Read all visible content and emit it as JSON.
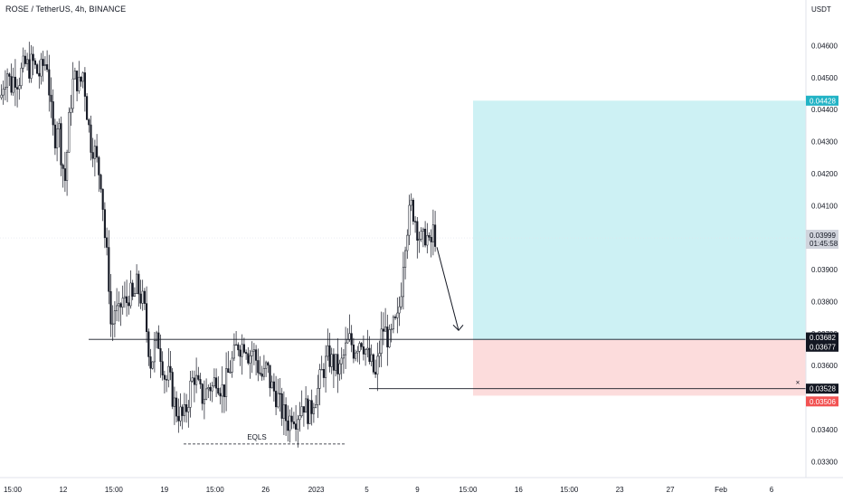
{
  "chart_title": "ROSE / TetherUS, 4h, BINANCE",
  "colors": {
    "candle": "#131722",
    "profit_zone": "#cdf1f4",
    "stop_zone": "#fcdcdc",
    "target_badge": "#22b3c5",
    "stop_badge": "#f25353",
    "dark_badge": "#131722",
    "current_badge": "#d1d4dc"
  },
  "chart_data": {
    "type": "candlestick",
    "symbol": "ROSE / TetherUS",
    "interval": "4h",
    "exchange": "BINANCE",
    "y_unit": "USDT",
    "ylim": [
      0.0325,
      0.0472
    ],
    "y_ticks": [
      "0.04600",
      "0.04500",
      "0.04400",
      "0.04300",
      "0.04200",
      "0.04100",
      "0.03900",
      "0.03800",
      "0.03700",
      "0.03600",
      "0.03400",
      "0.03300"
    ],
    "x_ticks": [
      "15:00",
      "12",
      "15:00",
      "19",
      "15:00",
      "26",
      "2023",
      "5",
      "9",
      "15:00",
      "16",
      "15:00",
      "23",
      "27",
      "Feb",
      "6"
    ],
    "price_path": [
      [
        0,
        0.0442
      ],
      [
        4,
        0.0449
      ],
      [
        8,
        0.0452
      ],
      [
        12,
        0.0447
      ],
      [
        16,
        0.0451
      ],
      [
        20,
        0.0449
      ],
      [
        24,
        0.0452
      ],
      [
        28,
        0.0454
      ],
      [
        32,
        0.0453
      ],
      [
        36,
        0.0455
      ],
      [
        40,
        0.0452
      ],
      [
        44,
        0.0451
      ],
      [
        48,
        0.0454
      ],
      [
        52,
        0.0455
      ],
      [
        56,
        0.044
      ],
      [
        60,
        0.043
      ],
      [
        64,
        0.0438
      ],
      [
        68,
        0.0425
      ],
      [
        72,
        0.0418
      ],
      [
        76,
        0.0435
      ],
      [
        80,
        0.0448
      ],
      [
        84,
        0.045
      ],
      [
        88,
        0.0447
      ],
      [
        92,
        0.0452
      ],
      [
        96,
        0.044
      ],
      [
        100,
        0.043
      ],
      [
        104,
        0.0428
      ],
      [
        108,
        0.0422
      ],
      [
        112,
        0.0418
      ],
      [
        116,
        0.04
      ],
      [
        120,
        0.0388
      ],
      [
        123,
        0.037
      ],
      [
        127,
        0.0378
      ],
      [
        131,
        0.0375
      ],
      [
        135,
        0.0381
      ],
      [
        139,
        0.0379
      ],
      [
        143,
        0.0383
      ],
      [
        147,
        0.038
      ],
      [
        151,
        0.0385
      ],
      [
        155,
        0.0382
      ],
      [
        159,
        0.0379
      ],
      [
        163,
        0.0369
      ],
      [
        167,
        0.036
      ],
      [
        171,
        0.0366
      ],
      [
        175,
        0.0368
      ],
      [
        179,
        0.0362
      ],
      [
        183,
        0.0355
      ],
      [
        187,
        0.0357
      ],
      [
        191,
        0.035
      ],
      [
        195,
        0.0346
      ],
      [
        199,
        0.0345
      ],
      [
        203,
        0.0343
      ],
      [
        207,
        0.0348
      ],
      [
        211,
        0.0354
      ],
      [
        215,
        0.0357
      ],
      [
        219,
        0.0353
      ],
      [
        223,
        0.035
      ],
      [
        227,
        0.0351
      ],
      [
        231,
        0.0354
      ],
      [
        235,
        0.0353
      ],
      [
        239,
        0.0357
      ],
      [
        243,
        0.0354
      ],
      [
        247,
        0.0352
      ],
      [
        251,
        0.0356
      ],
      [
        255,
        0.036
      ],
      [
        259,
        0.0363
      ],
      [
        263,
        0.0367
      ],
      [
        267,
        0.0366
      ],
      [
        271,
        0.0368
      ],
      [
        275,
        0.0363
      ],
      [
        279,
        0.0365
      ],
      [
        283,
        0.0362
      ],
      [
        287,
        0.0358
      ],
      [
        291,
        0.0356
      ],
      [
        295,
        0.036
      ],
      [
        299,
        0.0354
      ],
      [
        303,
        0.0352
      ],
      [
        307,
        0.035
      ],
      [
        311,
        0.0346
      ],
      [
        315,
        0.0344
      ],
      [
        319,
        0.0342
      ],
      [
        323,
        0.0346
      ],
      [
        327,
        0.0344
      ],
      [
        331,
        0.0346
      ],
      [
        335,
        0.0349
      ],
      [
        339,
        0.0346
      ],
      [
        343,
        0.0345
      ],
      [
        347,
        0.035
      ],
      [
        351,
        0.0352
      ],
      [
        355,
        0.0357
      ],
      [
        359,
        0.036
      ],
      [
        363,
        0.0363
      ],
      [
        367,
        0.0361
      ],
      [
        371,
        0.036
      ],
      [
        375,
        0.0358
      ],
      [
        379,
        0.0362
      ],
      [
        383,
        0.0366
      ],
      [
        387,
        0.0368
      ],
      [
        391,
        0.0365
      ],
      [
        395,
        0.0367
      ],
      [
        399,
        0.0369
      ],
      [
        403,
        0.0366
      ],
      [
        407,
        0.0362
      ],
      [
        411,
        0.036
      ],
      [
        415,
        0.0356
      ],
      [
        419,
        0.0364
      ],
      [
        423,
        0.0372
      ],
      [
        427,
        0.037
      ],
      [
        431,
        0.0367
      ],
      [
        435,
        0.0372
      ],
      [
        439,
        0.0373
      ],
      [
        443,
        0.0382
      ],
      [
        447,
        0.0398
      ],
      [
        451,
        0.0405
      ],
      [
        455,
        0.041
      ],
      [
        459,
        0.0406
      ],
      [
        463,
        0.0401
      ],
      [
        467,
        0.0398
      ],
      [
        471,
        0.0402
      ],
      [
        475,
        0.0396
      ],
      [
        479,
        0.0402
      ],
      [
        483,
        0.0399
      ]
    ],
    "price_lines": [
      {
        "name": "target",
        "value": 0.04428,
        "label": "0.04428"
      },
      {
        "name": "entry-upper",
        "value": 0.03682,
        "label": "0.03682"
      },
      {
        "name": "entry-lower",
        "value": 0.03677,
        "label": "0.03677"
      },
      {
        "name": "low-line",
        "value": 0.03528,
        "label": "0.03528"
      },
      {
        "name": "stop",
        "value": 0.03506,
        "label": "0.03506"
      }
    ],
    "current_price": "0.03999",
    "countdown": "01:45:58",
    "annotation": "EQLS",
    "position": {
      "type": "long",
      "target": 0.04428,
      "entry": 0.0368,
      "stop": 0.03506
    }
  }
}
